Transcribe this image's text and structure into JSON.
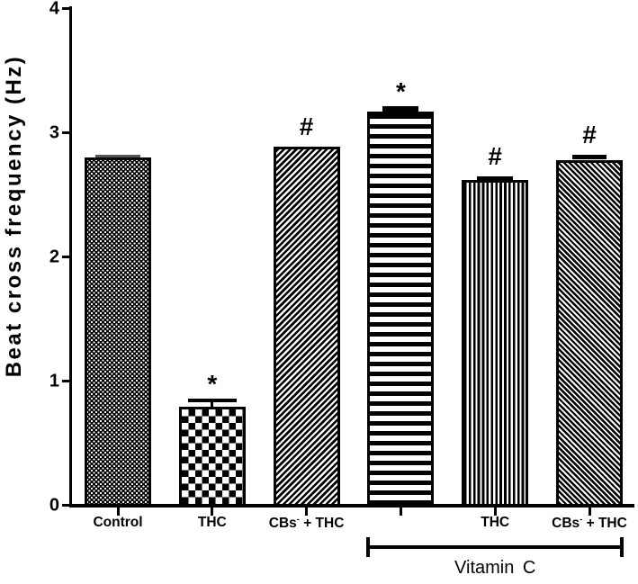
{
  "figure": {
    "type": "scientific-bar-chart",
    "background": "#ffffff",
    "foreground": "#000000"
  },
  "chart_data": {
    "type": "bar",
    "title": "",
    "xlabel": "",
    "ylabel": "Beat cross frequency (Hz)",
    "ylim": [
      0,
      4
    ],
    "yticks": [
      0,
      1,
      2,
      3,
      4
    ],
    "grid": false,
    "legend": false,
    "categories": [
      "Control",
      "THC",
      "CBs⁻ + THC",
      "",
      "THC",
      "CBs⁻ + THC"
    ],
    "values": [
      2.79,
      0.78,
      2.88,
      3.16,
      2.61,
      2.77
    ],
    "errors": [
      0.02,
      0.07,
      0,
      0.045,
      0.03,
      0.045
    ],
    "annotations": [
      "",
      "*",
      "#",
      "*",
      "#",
      "#"
    ],
    "patterns": [
      "fine-dots",
      "checkerboard",
      "diagonal-up",
      "horizontal-lines",
      "vertical-lines",
      "diagonal-down"
    ],
    "error_cap_colors": [
      "#555555",
      "#000000",
      "",
      "#000000",
      "#000000",
      "#000000"
    ],
    "bar_outline_color": "#000000",
    "group_bracket": {
      "label": "Vitamin C",
      "bar_indexes": [
        3,
        4,
        5
      ]
    }
  }
}
